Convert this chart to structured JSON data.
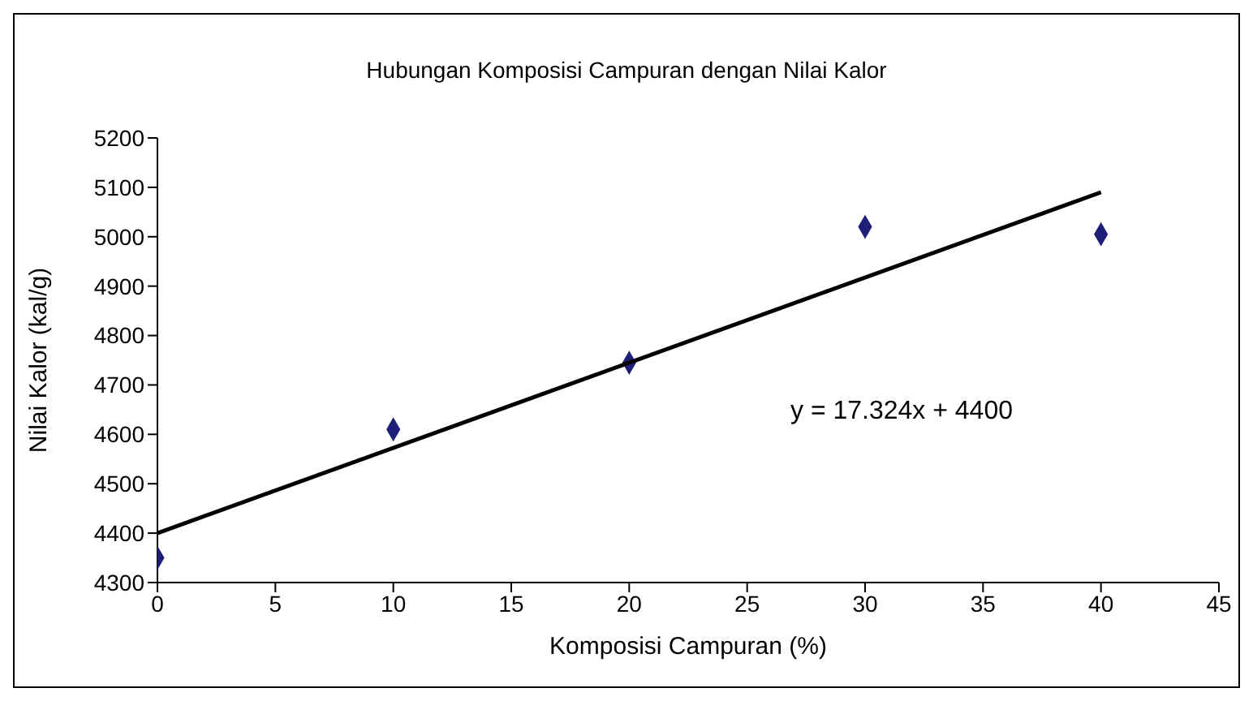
{
  "chart_data": {
    "type": "scatter",
    "title": "Hubungan Komposisi Campuran dengan Nilai Kalor",
    "xlabel": "Komposisi Campuran (%)",
    "ylabel": "Nilai Kalor (kal/g)",
    "x": [
      0,
      10,
      20,
      30,
      40
    ],
    "series": [
      {
        "color": "#1f1f7a",
        "values": [
          4350,
          4610,
          4745,
          5020,
          5005
        ],
        "marker": "diamond"
      },
      {
        "type": "line",
        "color": "#000000",
        "x": [
          0,
          40
        ],
        "values": [
          4400,
          5090
        ],
        "marker": "none"
      }
    ],
    "xlim": [
      0,
      45
    ],
    "xticks": [
      0,
      5,
      10,
      15,
      20,
      25,
      30,
      35,
      40,
      45
    ],
    "ylim": [
      4300,
      5200
    ],
    "yticks": [
      4300,
      4400,
      4500,
      4600,
      4700,
      4800,
      4900,
      5000,
      5100,
      5200
    ],
    "annotations": [
      "y = 17.324x + 4400"
    ],
    "grid": false,
    "legend": false
  }
}
